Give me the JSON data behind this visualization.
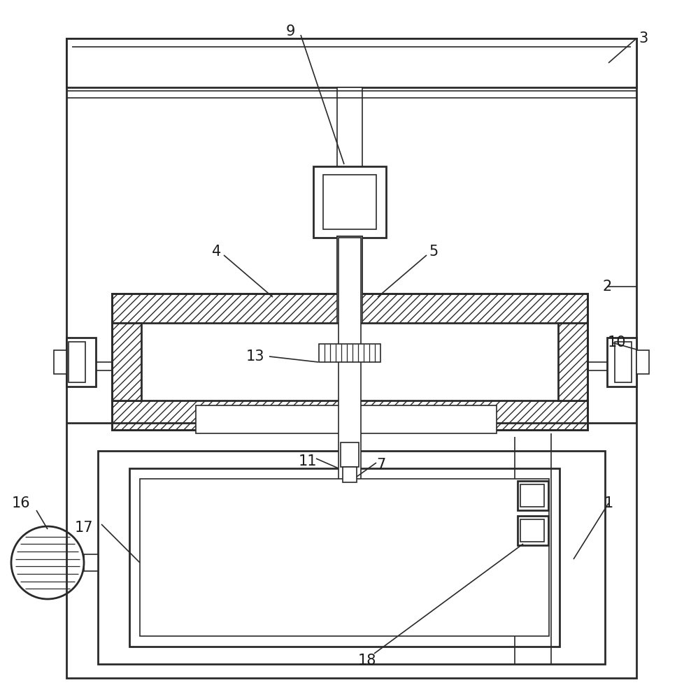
{
  "bg_color": "#ffffff",
  "line_color": "#2a2a2a",
  "label_color": "#1a1a1a",
  "figsize": [
    9.98,
    10.0
  ],
  "dpi": 100
}
